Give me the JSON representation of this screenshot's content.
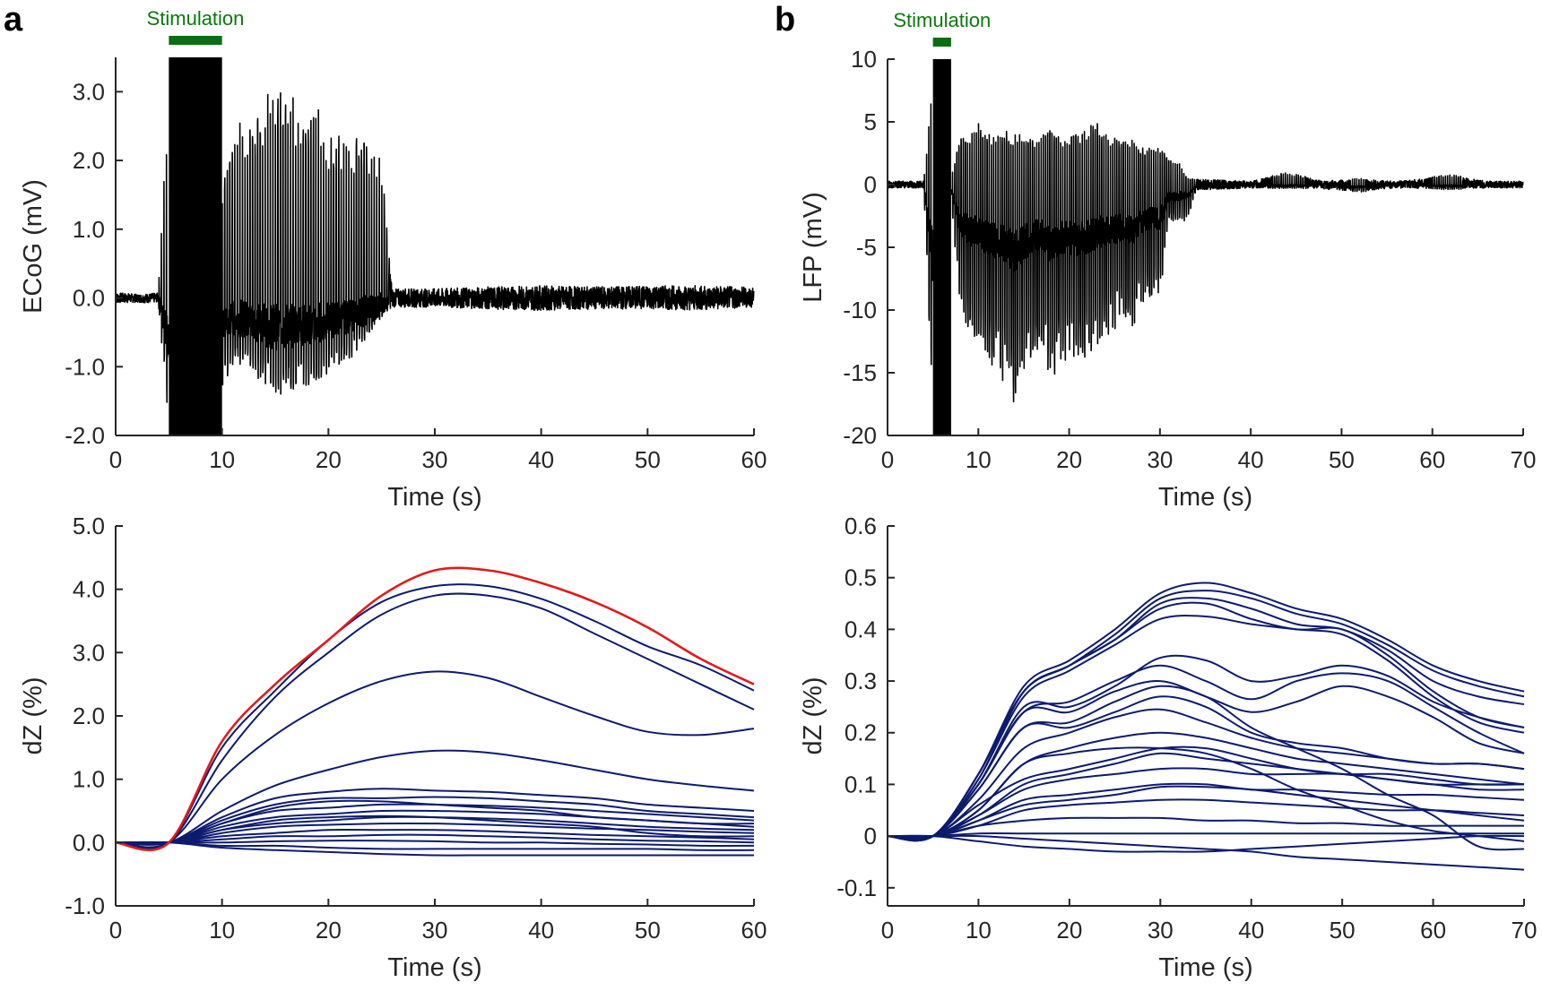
{
  "colors": {
    "signal": "#000000",
    "dz": "#0d1b6e",
    "highlight": "#e31a1c",
    "stimulation": "#0a6e12",
    "axis": "#262626"
  },
  "chart_data": [
    {
      "id": "a-top",
      "panel_label": "a",
      "type": "line",
      "ylabel": "ECoG (mV)",
      "xlabel": "Time (s)",
      "xlim": [
        0,
        60
      ],
      "ylim": [
        -2.0,
        3.5
      ],
      "xticks": [
        "0",
        "10",
        "20",
        "30",
        "40",
        "50",
        "60"
      ],
      "xtick_values": [
        0,
        10,
        20,
        30,
        40,
        50,
        60
      ],
      "yticks": [
        "3.0",
        "2.0",
        "1.0",
        "0.0",
        "-1.0",
        "-2.0"
      ],
      "ytick_values": [
        3,
        2,
        1,
        0,
        -1,
        -2
      ],
      "stimulation": {
        "label": "Stimulation",
        "start": 5,
        "end": 10
      },
      "envelope": {
        "t": [
          0,
          1,
          2,
          3,
          4,
          5,
          6,
          7,
          8,
          9,
          10,
          11,
          12,
          13,
          14,
          15,
          16,
          17,
          18,
          19,
          20,
          21,
          22,
          23,
          24,
          25,
          26,
          27,
          28,
          30,
          35,
          40,
          45,
          50,
          55,
          60
        ],
        "max": [
          0.08,
          0.08,
          0.06,
          0.07,
          0.08,
          3.5,
          3.5,
          3.5,
          3.5,
          3.5,
          1.5,
          2.5,
          2.6,
          2.7,
          2.9,
          3.1,
          3.2,
          2.8,
          2.6,
          2.8,
          2.4,
          2.4,
          2.3,
          2.4,
          2.3,
          2.0,
          0.15,
          0.15,
          0.15,
          0.15,
          0.18,
          0.2,
          0.18,
          0.2,
          0.2,
          0.18
        ],
        "min": [
          -0.08,
          -0.08,
          -0.07,
          -0.08,
          -0.07,
          -2.0,
          -2.0,
          -2.0,
          -2.0,
          -2.0,
          -1.3,
          -1.0,
          -1.0,
          -1.1,
          -1.3,
          -1.4,
          -1.4,
          -1.3,
          -1.3,
          -1.2,
          -1.1,
          -1.0,
          -0.9,
          -0.7,
          -0.5,
          -0.3,
          -0.15,
          -0.15,
          -0.15,
          -0.15,
          -0.18,
          -0.2,
          -0.18,
          -0.18,
          -0.2,
          -0.15
        ]
      }
    },
    {
      "id": "b-top",
      "panel_label": "b",
      "type": "line",
      "ylabel": "LFP (mV)",
      "xlabel": "Time (s)",
      "xlim": [
        0,
        70
      ],
      "ylim": [
        -20,
        10
      ],
      "xticks": [
        "0",
        "10",
        "20",
        "30",
        "40",
        "50",
        "60",
        "70"
      ],
      "xtick_values": [
        0,
        10,
        20,
        30,
        40,
        50,
        60,
        70
      ],
      "yticks": [
        "10",
        "5",
        "0",
        "-5",
        "-10",
        "-15",
        "-20"
      ],
      "ytick_values": [
        10,
        5,
        0,
        -5,
        -10,
        -15,
        -20
      ],
      "stimulation": {
        "label": "Stimulation",
        "start": 5,
        "end": 7
      },
      "envelope": {
        "t": [
          0,
          2,
          4,
          5,
          6,
          7,
          8,
          9,
          10,
          11,
          12,
          13,
          14,
          15,
          16,
          17,
          18,
          19,
          20,
          21,
          22,
          23,
          24,
          25,
          26,
          27,
          28,
          29,
          30,
          31,
          32,
          33,
          34,
          40,
          44,
          48,
          52,
          56,
          62,
          66,
          70
        ],
        "max": [
          0.3,
          0.3,
          0.3,
          10,
          10,
          0.5,
          4,
          4,
          5,
          4,
          4,
          4.5,
          4,
          4,
          3.5,
          4,
          4.5,
          4,
          4,
          4,
          4.5,
          5,
          4,
          4,
          3.5,
          4,
          3,
          3,
          3,
          2,
          2,
          0.5,
          0.5,
          0.3,
          1.0,
          0.3,
          0.5,
          0.3,
          0.8,
          0.3,
          0.3
        ],
        "min": [
          -0.3,
          -0.3,
          -0.3,
          -20,
          -20,
          -1.5,
          -10,
          -12,
          -13,
          -14,
          -15,
          -16,
          -18,
          -15,
          -14,
          -13,
          -16,
          -14,
          -14,
          -15,
          -14,
          -13,
          -12,
          -12,
          -11,
          -12,
          -10,
          -9,
          -9,
          -3,
          -3,
          -3,
          -0.5,
          -0.3,
          -0.3,
          -0.4,
          -0.6,
          -0.3,
          -0.4,
          -0.3,
          -0.3
        ]
      }
    },
    {
      "id": "a-bottom",
      "type": "line",
      "ylabel": "dZ (%)",
      "xlabel": "Time (s)",
      "xlim": [
        0,
        60
      ],
      "ylim": [
        -1.0,
        5.0
      ],
      "xticks": [
        "0",
        "10",
        "20",
        "30",
        "40",
        "50",
        "60"
      ],
      "xtick_values": [
        0,
        10,
        20,
        30,
        40,
        50,
        60
      ],
      "yticks": [
        "5.0",
        "4.0",
        "3.0",
        "2.0",
        "1.0",
        "0.0",
        "-1.0"
      ],
      "ytick_values": [
        5,
        4,
        3,
        2,
        1,
        0,
        -1
      ],
      "x": [
        0,
        5,
        10,
        15,
        20,
        25,
        30,
        35,
        40,
        45,
        50,
        55,
        60
      ],
      "highlight_series": 0,
      "series": [
        [
          0,
          0,
          1.6,
          2.5,
          3.2,
          3.9,
          4.3,
          4.3,
          4.1,
          3.8,
          3.4,
          2.9,
          2.5
        ],
        [
          0,
          0,
          1.5,
          2.4,
          3.2,
          3.8,
          4.05,
          4.05,
          3.85,
          3.5,
          3.1,
          2.8,
          2.4
        ],
        [
          0,
          0,
          1.3,
          2.3,
          3.0,
          3.6,
          3.9,
          3.9,
          3.7,
          3.3,
          2.9,
          2.5,
          2.1
        ],
        [
          0,
          0,
          1.0,
          1.7,
          2.2,
          2.55,
          2.7,
          2.6,
          2.3,
          2.0,
          1.75,
          1.7,
          1.8
        ],
        [
          0,
          0,
          0.5,
          0.9,
          1.15,
          1.35,
          1.45,
          1.42,
          1.3,
          1.15,
          1.0,
          0.9,
          0.82
        ],
        [
          0,
          0,
          0.4,
          0.7,
          0.8,
          0.85,
          0.82,
          0.8,
          0.75,
          0.7,
          0.6,
          0.55,
          0.5
        ],
        [
          0,
          0,
          0.35,
          0.6,
          0.7,
          0.7,
          0.72,
          0.7,
          0.65,
          0.6,
          0.5,
          0.45,
          0.4
        ],
        [
          0,
          0,
          0.3,
          0.55,
          0.65,
          0.65,
          0.6,
          0.55,
          0.5,
          0.4,
          0.35,
          0.3,
          0.3
        ],
        [
          0,
          0,
          0.3,
          0.5,
          0.55,
          0.6,
          0.6,
          0.58,
          0.55,
          0.5,
          0.45,
          0.4,
          0.35
        ],
        [
          0,
          0,
          0.25,
          0.4,
          0.45,
          0.5,
          0.5,
          0.48,
          0.45,
          0.4,
          0.35,
          0.3,
          0.25
        ],
        [
          0,
          0,
          0.2,
          0.35,
          0.4,
          0.42,
          0.4,
          0.35,
          0.3,
          0.25,
          0.15,
          0.1,
          0.1
        ],
        [
          0,
          0,
          0.2,
          0.3,
          0.35,
          0.4,
          0.4,
          0.38,
          0.35,
          0.3,
          0.25,
          0.22,
          0.2
        ],
        [
          0,
          0,
          0.15,
          0.25,
          0.28,
          0.3,
          0.3,
          0.28,
          0.25,
          0.22,
          0.2,
          0.17,
          0.15
        ],
        [
          0,
          0,
          0.1,
          0.15,
          0.2,
          0.2,
          0.2,
          0.18,
          0.15,
          0.12,
          0.1,
          0.08,
          0.05
        ],
        [
          0,
          0,
          0.05,
          0.1,
          0.1,
          0.12,
          0.12,
          0.1,
          0.08,
          0.05,
          0.03,
          0.02,
          0
        ],
        [
          0,
          0,
          0,
          0.02,
          0.03,
          0.03,
          0.02,
          0,
          0,
          -0.02,
          -0.03,
          -0.05,
          -0.05
        ],
        [
          0,
          0,
          -0.05,
          -0.05,
          -0.08,
          -0.1,
          -0.1,
          -0.1,
          -0.1,
          -0.1,
          -0.1,
          -0.12,
          -0.12
        ],
        [
          0,
          0,
          -0.08,
          -0.12,
          -0.15,
          -0.18,
          -0.2,
          -0.2,
          -0.2,
          -0.2,
          -0.2,
          -0.2,
          -0.2
        ]
      ]
    },
    {
      "id": "b-bottom",
      "type": "line",
      "ylabel": "dZ (%)",
      "xlabel": "Time (s)",
      "xlim": [
        0,
        70
      ],
      "ylim": [
        -0.135,
        0.6
      ],
      "xticks": [
        "0",
        "10",
        "20",
        "30",
        "40",
        "50",
        "60",
        "70"
      ],
      "xtick_values": [
        0,
        10,
        20,
        30,
        40,
        50,
        60,
        70
      ],
      "yticks": [
        "0.6",
        "0.5",
        "0.4",
        "0.3",
        "0.2",
        "0.1",
        "0",
        "-0.1"
      ],
      "ytick_values": [
        0.6,
        0.5,
        0.4,
        0.3,
        0.2,
        0.1,
        0,
        -0.1
      ],
      "x": [
        0,
        5,
        10,
        15,
        20,
        25,
        30,
        35,
        40,
        45,
        50,
        55,
        60,
        65,
        70
      ],
      "series": [
        [
          0,
          0,
          0.12,
          0.29,
          0.34,
          0.4,
          0.47,
          0.49,
          0.47,
          0.44,
          0.42,
          0.38,
          0.33,
          0.3,
          0.28
        ],
        [
          0,
          0,
          0.12,
          0.28,
          0.33,
          0.39,
          0.46,
          0.475,
          0.46,
          0.43,
          0.41,
          0.37,
          0.32,
          0.29,
          0.27
        ],
        [
          0,
          0,
          0.12,
          0.28,
          0.33,
          0.38,
          0.45,
          0.46,
          0.44,
          0.41,
          0.4,
          0.36,
          0.3,
          0.27,
          0.255
        ],
        [
          0,
          0,
          0.11,
          0.28,
          0.33,
          0.38,
          0.44,
          0.45,
          0.42,
          0.4,
          0.4,
          0.35,
          0.28,
          0.23,
          0.21
        ],
        [
          0,
          0,
          0.11,
          0.27,
          0.32,
          0.37,
          0.42,
          0.425,
          0.41,
          0.4,
          0.39,
          0.34,
          0.27,
          0.22,
          0.2
        ],
        [
          0,
          0,
          0.1,
          0.25,
          0.25,
          0.29,
          0.345,
          0.34,
          0.3,
          0.31,
          0.33,
          0.31,
          0.26,
          0.23,
          0.21
        ],
        [
          0,
          0,
          0.1,
          0.24,
          0.26,
          0.3,
          0.33,
          0.3,
          0.265,
          0.3,
          0.315,
          0.3,
          0.25,
          0.2,
          0.16
        ],
        [
          0,
          0,
          0.1,
          0.24,
          0.24,
          0.28,
          0.3,
          0.27,
          0.24,
          0.26,
          0.29,
          0.27,
          0.23,
          0.18,
          0.16
        ],
        [
          0,
          0,
          0.09,
          0.21,
          0.22,
          0.26,
          0.29,
          0.27,
          0.21,
          0.17,
          0.13,
          0.08,
          0.04,
          -0.02,
          -0.025
        ],
        [
          0,
          0,
          0.09,
          0.21,
          0.21,
          0.24,
          0.27,
          0.25,
          0.2,
          0.18,
          0.17,
          0.15,
          0.14,
          0.14,
          0.13
        ],
        [
          0,
          0,
          0.07,
          0.17,
          0.2,
          0.23,
          0.245,
          0.22,
          0.19,
          0.17,
          0.16,
          0.15,
          0.14,
          0.14,
          0.13
        ],
        [
          0,
          0,
          0.05,
          0.14,
          0.17,
          0.19,
          0.2,
          0.19,
          0.17,
          0.15,
          0.14,
          0.13,
          0.12,
          0.11,
          0.1
        ],
        [
          0,
          0,
          0.05,
          0.14,
          0.16,
          0.17,
          0.17,
          0.16,
          0.13,
          0.09,
          0.06,
          0.03,
          0.01,
          0.0,
          -0.01
        ],
        [
          0,
          0,
          0.06,
          0.11,
          0.13,
          0.15,
          0.17,
          0.17,
          0.15,
          0.13,
          0.12,
          0.12,
          0.11,
          0.1,
          0.1
        ],
        [
          0,
          0,
          0.04,
          0.1,
          0.12,
          0.14,
          0.16,
          0.15,
          0.14,
          0.13,
          0.12,
          0.11,
          0.1,
          0.09,
          0.09
        ],
        [
          0,
          0,
          0.04,
          0.09,
          0.11,
          0.12,
          0.13,
          0.13,
          0.12,
          0.12,
          0.12,
          0.11,
          0.1,
          0.1,
          0.1
        ],
        [
          0,
          0,
          0.03,
          0.07,
          0.08,
          0.09,
          0.1,
          0.1,
          0.09,
          0.09,
          0.085,
          0.08,
          0.08,
          0.075,
          0.07
        ],
        [
          0,
          0,
          0.03,
          0.06,
          0.07,
          0.08,
          0.095,
          0.095,
          0.09,
          0.08,
          0.07,
          0.06,
          0.05,
          0.04,
          0.03
        ],
        [
          0,
          0,
          0.02,
          0.05,
          0.06,
          0.065,
          0.07,
          0.07,
          0.065,
          0.06,
          0.055,
          0.05,
          0.05,
          0.045,
          0.04
        ],
        [
          0,
          0,
          0.02,
          0.03,
          0.035,
          0.035,
          0.035,
          0.03,
          0.03,
          0.025,
          0.025,
          0.02,
          0.02,
          0.02,
          0.02
        ],
        [
          0,
          0,
          0.005,
          0.005,
          0.005,
          0.005,
          0.005,
          0.005,
          0.005,
          0.005,
          0.005,
          0.005,
          0.005,
          0.005,
          0.005
        ],
        [
          0,
          0,
          -0.01,
          -0.02,
          -0.025,
          -0.03,
          -0.03,
          -0.03,
          -0.025,
          -0.02,
          -0.015,
          -0.01,
          -0.005,
          0,
          0
        ],
        [
          0,
          0,
          0,
          -0.005,
          -0.01,
          -0.015,
          -0.02,
          -0.025,
          -0.03,
          -0.04,
          -0.045,
          -0.05,
          -0.055,
          -0.06,
          -0.065
        ]
      ]
    }
  ]
}
